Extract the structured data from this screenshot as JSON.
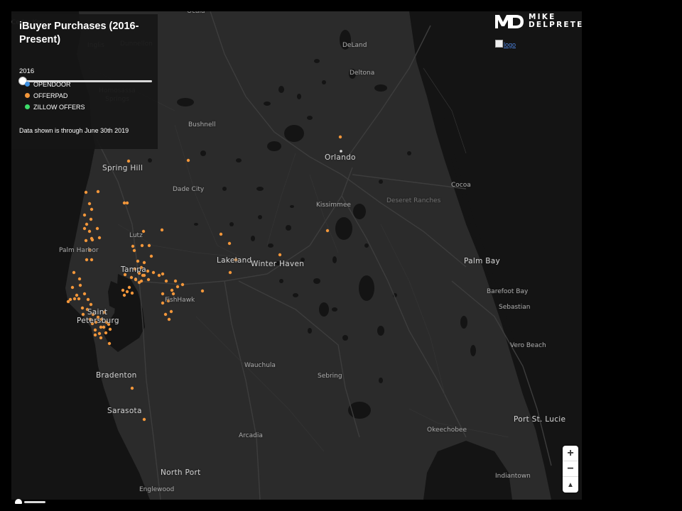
{
  "panel": {
    "title": "iBuyer Purchases (2016-Present)",
    "year_label": "2016",
    "slider": {
      "min": 2016,
      "max": 2019,
      "value": 2016
    },
    "legend": [
      {
        "label": "OPENDOOR",
        "color": "#3d8fe0"
      },
      {
        "label": "OFFERPAD",
        "color": "#f2963a"
      },
      {
        "label": "ZILLOW OFFERS",
        "color": "#3ddc6a"
      }
    ],
    "note": "Data shown is through June 30th 2019"
  },
  "brand": {
    "monogram": "MD",
    "line1": "MIKE",
    "line2": "DELPRETE"
  },
  "logo_alt": "logo",
  "zoom": {
    "in_label": "+",
    "out_label": "−",
    "compass_label": "▲"
  },
  "map": {
    "base_color": "#2b2b2b",
    "water_color": "#0f0f0f",
    "marker_color": "#f2963a",
    "place_labels": [
      {
        "name": "Ocala",
        "style": "small"
      },
      {
        "name": "Cedar Key",
        "style": "dim"
      },
      {
        "name": "Inglis",
        "style": "dim"
      },
      {
        "name": "Dunnellon",
        "style": "dim"
      },
      {
        "name": "DeLand",
        "style": "small"
      },
      {
        "name": "Deltona",
        "style": "small"
      },
      {
        "name": "Homosassa Springs",
        "style": "dim"
      },
      {
        "name": "Bushnell",
        "style": "small"
      },
      {
        "name": "Orlando",
        "style": "big"
      },
      {
        "name": "Spring Hill",
        "style": "big"
      },
      {
        "name": "Dade City",
        "style": "small"
      },
      {
        "name": "Cocoa",
        "style": "small"
      },
      {
        "name": "Kissimmee",
        "style": "small"
      },
      {
        "name": "Deseret Ranches",
        "style": "dim"
      },
      {
        "name": "Lutz",
        "style": "small"
      },
      {
        "name": "Palm Harbor",
        "style": "small"
      },
      {
        "name": "Lakeland",
        "style": "big"
      },
      {
        "name": "Winter Haven",
        "style": "big"
      },
      {
        "name": "Palm Bay",
        "style": "big"
      },
      {
        "name": "Tampa",
        "style": "big"
      },
      {
        "name": "Barefoot Bay",
        "style": "small"
      },
      {
        "name": "FishHawk",
        "style": "small"
      },
      {
        "name": "Sebastian",
        "style": "small"
      },
      {
        "name": "Saint Petersburg",
        "style": "big"
      },
      {
        "name": "Vero Beach",
        "style": "small"
      },
      {
        "name": "Wauchula",
        "style": "small"
      },
      {
        "name": "Bradenton",
        "style": "big"
      },
      {
        "name": "Sebring",
        "style": "small"
      },
      {
        "name": "Sarasota",
        "style": "big"
      },
      {
        "name": "Port St. Lucie",
        "style": "big"
      },
      {
        "name": "Arcadia",
        "style": "small"
      },
      {
        "name": "Okeechobee",
        "style": "small"
      },
      {
        "name": "North Port",
        "style": "big"
      },
      {
        "name": "Indiantown",
        "style": "small"
      },
      {
        "name": "Englewood",
        "style": "small"
      }
    ]
  }
}
